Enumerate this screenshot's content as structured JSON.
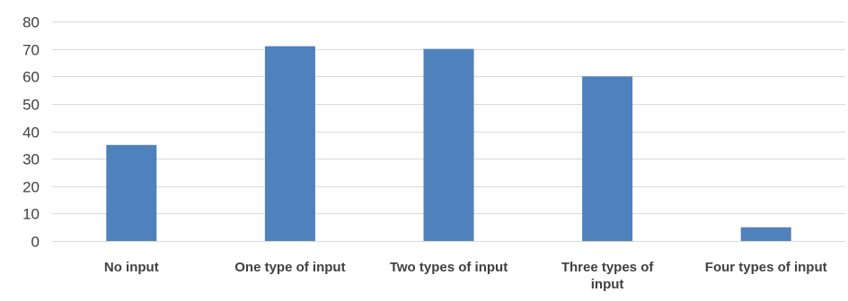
{
  "chart_data": {
    "type": "bar",
    "title": "",
    "xlabel": "",
    "ylabel": "",
    "categories": [
      "No input",
      "One type of input",
      "Two types of input",
      "Three types of input",
      "Four types of input"
    ],
    "category_label_lines": [
      [
        "No input"
      ],
      [
        "One type of input"
      ],
      [
        "Two types of input"
      ],
      [
        "Three types of",
        "input"
      ],
      [
        "Four types of input"
      ]
    ],
    "values": [
      35,
      71,
      70,
      60,
      5
    ],
    "ylim": [
      0,
      80
    ],
    "yticks": [
      0,
      10,
      20,
      30,
      40,
      50,
      60,
      70,
      80
    ],
    "grid": true,
    "legend": "none",
    "bar_color": "#4f81bd"
  }
}
